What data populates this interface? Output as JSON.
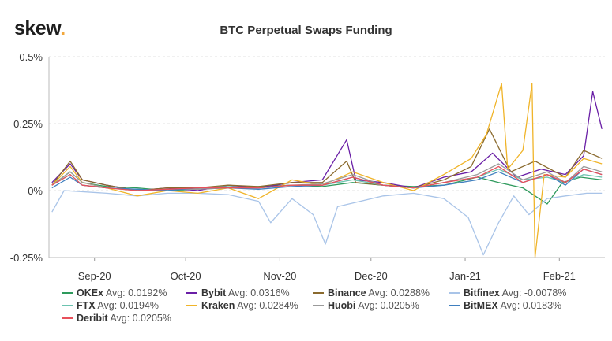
{
  "brand": {
    "logo_text": "skew",
    "logo_dot": "."
  },
  "chart_data": {
    "type": "line",
    "title": "BTC Perpetual Swaps Funding",
    "xlabel": "",
    "ylabel": "",
    "ylim": [
      -0.25,
      0.5
    ],
    "xlim": [
      "2020-08-17",
      "2021-02-16"
    ],
    "y_ticks": [
      {
        "value": 0.5,
        "label": "0.5%"
      },
      {
        "value": 0.25,
        "label": "0.25%"
      },
      {
        "value": 0,
        "label": "0%"
      },
      {
        "value": -0.25,
        "label": "-0.25%"
      }
    ],
    "x_ticks": [
      {
        "date": "2020-09-01",
        "label": "Sep-20"
      },
      {
        "date": "2020-10-01",
        "label": "Oct-20"
      },
      {
        "date": "2020-11-01",
        "label": "Nov-20"
      },
      {
        "date": "2020-12-01",
        "label": "Dec-20"
      },
      {
        "date": "2021-01-01",
        "label": "Jan-21"
      },
      {
        "date": "2021-02-01",
        "label": "Feb-21"
      }
    ],
    "grid": "horizontal-dashed",
    "legend_position": "bottom",
    "series": [
      {
        "name": "OKEx",
        "avg_label": "Avg: 0.0192%",
        "color": "#2e9a5c",
        "points": [
          [
            "2020-08-18",
            0.02
          ],
          [
            "2020-08-24",
            0.07
          ],
          [
            "2020-08-28",
            0.03
          ],
          [
            "2020-09-05",
            0.015
          ],
          [
            "2020-09-15",
            0.01
          ],
          [
            "2020-09-25",
            0.0
          ],
          [
            "2020-10-05",
            0.005
          ],
          [
            "2020-10-15",
            0.01
          ],
          [
            "2020-10-25",
            0.015
          ],
          [
            "2020-11-05",
            0.02
          ],
          [
            "2020-11-15",
            0.015
          ],
          [
            "2020-11-25",
            0.03
          ],
          [
            "2020-12-05",
            0.02
          ],
          [
            "2020-12-15",
            0.015
          ],
          [
            "2020-12-25",
            0.02
          ],
          [
            "2021-01-05",
            0.05
          ],
          [
            "2021-01-12",
            0.03
          ],
          [
            "2021-01-20",
            0.01
          ],
          [
            "2021-01-28",
            -0.05
          ],
          [
            "2021-02-02",
            0.03
          ],
          [
            "2021-02-08",
            0.05
          ],
          [
            "2021-02-15",
            0.04
          ]
        ]
      },
      {
        "name": "Bybit",
        "avg_label": "Avg: 0.0316%",
        "color": "#6a1fa6",
        "points": [
          [
            "2020-08-18",
            0.03
          ],
          [
            "2020-08-24",
            0.1
          ],
          [
            "2020-08-28",
            0.04
          ],
          [
            "2020-09-05",
            0.02
          ],
          [
            "2020-09-15",
            0.0
          ],
          [
            "2020-09-25",
            0.01
          ],
          [
            "2020-10-05",
            0.0
          ],
          [
            "2020-10-15",
            0.02
          ],
          [
            "2020-10-25",
            0.01
          ],
          [
            "2020-11-05",
            0.03
          ],
          [
            "2020-11-15",
            0.04
          ],
          [
            "2020-11-23",
            0.19
          ],
          [
            "2020-11-26",
            0.04
          ],
          [
            "2020-12-05",
            0.03
          ],
          [
            "2020-12-15",
            0.01
          ],
          [
            "2020-12-25",
            0.05
          ],
          [
            "2021-01-03",
            0.07
          ],
          [
            "2021-01-10",
            0.14
          ],
          [
            "2021-01-18",
            0.05
          ],
          [
            "2021-01-26",
            0.08
          ],
          [
            "2021-02-03",
            0.06
          ],
          [
            "2021-02-09",
            0.13
          ],
          [
            "2021-02-12",
            0.37
          ],
          [
            "2021-02-15",
            0.23
          ]
        ]
      },
      {
        "name": "Binance",
        "avg_label": "Avg: 0.0288%",
        "color": "#8a6a2e",
        "points": [
          [
            "2020-08-18",
            0.02
          ],
          [
            "2020-08-24",
            0.11
          ],
          [
            "2020-08-28",
            0.04
          ],
          [
            "2020-09-05",
            0.02
          ],
          [
            "2020-09-15",
            0.0
          ],
          [
            "2020-09-25",
            0.01
          ],
          [
            "2020-10-05",
            0.01
          ],
          [
            "2020-10-15",
            0.02
          ],
          [
            "2020-10-25",
            0.015
          ],
          [
            "2020-11-05",
            0.03
          ],
          [
            "2020-11-15",
            0.03
          ],
          [
            "2020-11-23",
            0.11
          ],
          [
            "2020-11-26",
            0.03
          ],
          [
            "2020-12-05",
            0.02
          ],
          [
            "2020-12-15",
            0.01
          ],
          [
            "2020-12-25",
            0.04
          ],
          [
            "2021-01-03",
            0.09
          ],
          [
            "2021-01-09",
            0.23
          ],
          [
            "2021-01-16",
            0.07
          ],
          [
            "2021-01-24",
            0.11
          ],
          [
            "2021-02-03",
            0.05
          ],
          [
            "2021-02-09",
            0.15
          ],
          [
            "2021-02-15",
            0.12
          ]
        ]
      },
      {
        "name": "Bitfinex",
        "avg_label": "Avg: -0.0078%",
        "color": "#a9c4e8",
        "points": [
          [
            "2020-08-18",
            -0.08
          ],
          [
            "2020-08-22",
            0.0
          ],
          [
            "2020-09-05",
            -0.01
          ],
          [
            "2020-09-15",
            -0.02
          ],
          [
            "2020-09-25",
            -0.01
          ],
          [
            "2020-10-05",
            -0.01
          ],
          [
            "2020-10-15",
            -0.015
          ],
          [
            "2020-10-25",
            -0.04
          ],
          [
            "2020-10-29",
            -0.12
          ],
          [
            "2020-11-05",
            -0.03
          ],
          [
            "2020-11-12",
            -0.09
          ],
          [
            "2020-11-16",
            -0.2
          ],
          [
            "2020-11-20",
            -0.06
          ],
          [
            "2020-12-05",
            -0.02
          ],
          [
            "2020-12-15",
            -0.01
          ],
          [
            "2020-12-25",
            -0.03
          ],
          [
            "2021-01-02",
            -0.1
          ],
          [
            "2021-01-07",
            -0.24
          ],
          [
            "2021-01-12",
            -0.12
          ],
          [
            "2021-01-17",
            -0.02
          ],
          [
            "2021-01-22",
            -0.09
          ],
          [
            "2021-01-28",
            -0.03
          ],
          [
            "2021-02-03",
            -0.02
          ],
          [
            "2021-02-10",
            -0.01
          ],
          [
            "2021-02-15",
            -0.01
          ]
        ]
      },
      {
        "name": "FTX",
        "avg_label": "Avg: 0.0194%",
        "color": "#6cc3b0",
        "points": [
          [
            "2020-08-18",
            0.02
          ],
          [
            "2020-08-24",
            0.06
          ],
          [
            "2020-08-28",
            0.02
          ],
          [
            "2020-09-05",
            0.01
          ],
          [
            "2020-09-15",
            0.005
          ],
          [
            "2020-09-25",
            0.0
          ],
          [
            "2020-10-05",
            0.01
          ],
          [
            "2020-10-15",
            0.015
          ],
          [
            "2020-10-25",
            0.01
          ],
          [
            "2020-11-05",
            0.02
          ],
          [
            "2020-11-15",
            0.02
          ],
          [
            "2020-11-25",
            0.04
          ],
          [
            "2020-12-05",
            0.02
          ],
          [
            "2020-12-15",
            0.01
          ],
          [
            "2020-12-25",
            0.03
          ],
          [
            "2021-01-05",
            0.05
          ],
          [
            "2021-01-12",
            0.08
          ],
          [
            "2021-01-20",
            0.04
          ],
          [
            "2021-01-28",
            0.05
          ],
          [
            "2021-02-03",
            0.03
          ],
          [
            "2021-02-09",
            0.06
          ],
          [
            "2021-02-15",
            0.05
          ]
        ]
      },
      {
        "name": "Kraken",
        "avg_label": "Avg: 0.0284%",
        "color": "#f0b429",
        "points": [
          [
            "2020-08-18",
            0.02
          ],
          [
            "2020-08-24",
            0.09
          ],
          [
            "2020-08-28",
            0.03
          ],
          [
            "2020-09-05",
            0.01
          ],
          [
            "2020-09-15",
            -0.02
          ],
          [
            "2020-09-25",
            0.0
          ],
          [
            "2020-10-05",
            -0.01
          ],
          [
            "2020-10-15",
            0.01
          ],
          [
            "2020-10-25",
            -0.03
          ],
          [
            "2020-11-05",
            0.04
          ],
          [
            "2020-11-15",
            0.02
          ],
          [
            "2020-11-25",
            0.07
          ],
          [
            "2020-12-05",
            0.03
          ],
          [
            "2020-12-15",
            0.0
          ],
          [
            "2020-12-25",
            0.06
          ],
          [
            "2021-01-03",
            0.12
          ],
          [
            "2021-01-08",
            0.21
          ],
          [
            "2021-01-13",
            0.4
          ],
          [
            "2021-01-15",
            0.08
          ],
          [
            "2021-01-20",
            0.15
          ],
          [
            "2021-01-23",
            0.4
          ],
          [
            "2021-01-24",
            -0.25
          ],
          [
            "2021-01-27",
            0.06
          ],
          [
            "2021-02-03",
            0.05
          ],
          [
            "2021-02-09",
            0.12
          ],
          [
            "2021-02-15",
            0.1
          ]
        ]
      },
      {
        "name": "Huobi",
        "avg_label": "Avg: 0.0205%",
        "color": "#9a9a9a",
        "points": [
          [
            "2020-08-18",
            0.02
          ],
          [
            "2020-08-24",
            0.07
          ],
          [
            "2020-08-28",
            0.03
          ],
          [
            "2020-09-05",
            0.01
          ],
          [
            "2020-09-15",
            0.0
          ],
          [
            "2020-09-25",
            0.005
          ],
          [
            "2020-10-05",
            0.005
          ],
          [
            "2020-10-15",
            0.01
          ],
          [
            "2020-10-25",
            0.01
          ],
          [
            "2020-11-05",
            0.02
          ],
          [
            "2020-11-15",
            0.025
          ],
          [
            "2020-11-25",
            0.06
          ],
          [
            "2020-12-05",
            0.02
          ],
          [
            "2020-12-15",
            0.01
          ],
          [
            "2020-12-25",
            0.03
          ],
          [
            "2021-01-05",
            0.06
          ],
          [
            "2021-01-12",
            0.1
          ],
          [
            "2021-01-20",
            0.04
          ],
          [
            "2021-01-28",
            0.07
          ],
          [
            "2021-02-03",
            0.03
          ],
          [
            "2021-02-09",
            0.09
          ],
          [
            "2021-02-15",
            0.07
          ]
        ]
      },
      {
        "name": "BitMEX",
        "avg_label": "Avg: 0.0183%",
        "color": "#3f7fbf",
        "points": [
          [
            "2020-08-18",
            0.01
          ],
          [
            "2020-08-24",
            0.05
          ],
          [
            "2020-08-28",
            0.02
          ],
          [
            "2020-09-05",
            0.01
          ],
          [
            "2020-09-15",
            0.005
          ],
          [
            "2020-09-25",
            0.0
          ],
          [
            "2020-10-05",
            0.01
          ],
          [
            "2020-10-15",
            0.01
          ],
          [
            "2020-10-25",
            0.005
          ],
          [
            "2020-11-05",
            0.015
          ],
          [
            "2020-11-15",
            0.02
          ],
          [
            "2020-11-25",
            0.05
          ],
          [
            "2020-12-05",
            0.02
          ],
          [
            "2020-12-15",
            0.01
          ],
          [
            "2020-12-25",
            0.02
          ],
          [
            "2021-01-05",
            0.04
          ],
          [
            "2021-01-12",
            0.07
          ],
          [
            "2021-01-20",
            0.03
          ],
          [
            "2021-01-28",
            0.06
          ],
          [
            "2021-02-03",
            0.02
          ],
          [
            "2021-02-09",
            0.08
          ],
          [
            "2021-02-15",
            0.06
          ]
        ]
      },
      {
        "name": "Deribit",
        "avg_label": "Avg: 0.0205%",
        "color": "#e8505b",
        "points": [
          [
            "2020-08-18",
            0.02
          ],
          [
            "2020-08-24",
            0.06
          ],
          [
            "2020-08-28",
            0.02
          ],
          [
            "2020-09-05",
            0.01
          ],
          [
            "2020-09-15",
            0.0
          ],
          [
            "2020-09-25",
            0.005
          ],
          [
            "2020-10-05",
            0.01
          ],
          [
            "2020-10-15",
            0.01
          ],
          [
            "2020-10-25",
            0.01
          ],
          [
            "2020-11-05",
            0.02
          ],
          [
            "2020-11-15",
            0.02
          ],
          [
            "2020-11-25",
            0.05
          ],
          [
            "2020-12-05",
            0.02
          ],
          [
            "2020-12-15",
            0.01
          ],
          [
            "2020-12-25",
            0.03
          ],
          [
            "2021-01-05",
            0.05
          ],
          [
            "2021-01-12",
            0.09
          ],
          [
            "2021-01-20",
            0.03
          ],
          [
            "2021-01-28",
            0.06
          ],
          [
            "2021-02-03",
            0.03
          ],
          [
            "2021-02-09",
            0.08
          ],
          [
            "2021-02-15",
            0.06
          ]
        ]
      }
    ]
  }
}
